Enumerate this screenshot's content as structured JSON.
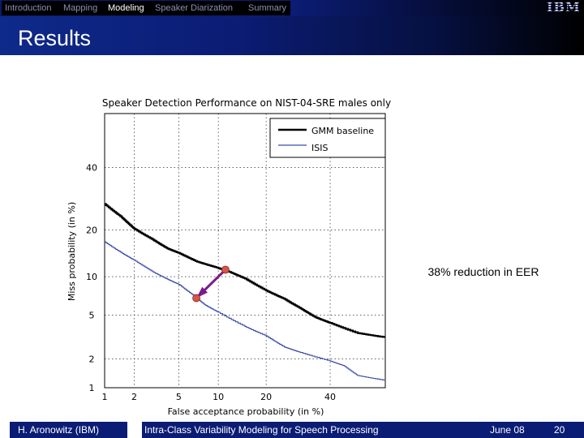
{
  "nav": {
    "items": [
      "Introduction",
      "Mapping",
      "Modeling",
      "Speaker Diarization",
      "Summary"
    ],
    "active": "Modeling",
    "logo_text": "IBM"
  },
  "slide_title": "Results",
  "chart_data": {
    "type": "line",
    "title": "Speaker Detection Performance on NIST-04-SRE males only",
    "xlabel": "False acceptance probability (in %)",
    "ylabel": "Miss probability (in %)",
    "x_ticks": [
      "1",
      "2",
      "5",
      "10",
      "20",
      "40"
    ],
    "y_ticks": [
      "40",
      "20",
      "10",
      "5",
      "2",
      "1"
    ],
    "xlim": [
      1,
      60
    ],
    "ylim": [
      1,
      60
    ],
    "scale": "probit (normal deviate)",
    "grid": true,
    "legend_position": "top-right",
    "series": [
      {
        "name": "GMM baseline",
        "color": "#000000",
        "points": [
          [
            1.0,
            27.5
          ],
          [
            1.5,
            23.5
          ],
          [
            2.0,
            20.3
          ],
          [
            3.0,
            17.5
          ],
          [
            4.0,
            15.5
          ],
          [
            5.0,
            14.5
          ],
          [
            7.0,
            12.7
          ],
          [
            10.0,
            11.5
          ],
          [
            12.0,
            10.8
          ],
          [
            15.0,
            9.7
          ],
          [
            20.0,
            7.9
          ],
          [
            25.0,
            6.8
          ],
          [
            30.0,
            5.7
          ],
          [
            35.0,
            4.8
          ],
          [
            40.0,
            4.3
          ],
          [
            50.0,
            3.5
          ],
          [
            60.0,
            3.2
          ]
        ]
      },
      {
        "name": "ISIS",
        "color": "#3a4aa8",
        "points": [
          [
            1.0,
            17.0
          ],
          [
            1.5,
            14.5
          ],
          [
            2.0,
            13.0
          ],
          [
            3.0,
            10.8
          ],
          [
            4.0,
            9.6
          ],
          [
            5.0,
            8.8
          ],
          [
            6.5,
            7.3
          ],
          [
            8.0,
            6.1
          ],
          [
            10.0,
            5.3
          ],
          [
            15.0,
            4.0
          ],
          [
            20.0,
            3.3
          ],
          [
            25.0,
            2.6
          ],
          [
            30.0,
            2.3
          ],
          [
            40.0,
            1.9
          ],
          [
            45.0,
            1.7
          ],
          [
            50.0,
            1.35
          ],
          [
            60.0,
            1.2
          ]
        ]
      }
    ],
    "annotation": {
      "label": "38% reduction in EER",
      "eer_baseline": 11.2,
      "eer_isis": 6.9
    }
  },
  "footer": {
    "author": "H. Aronowitz (IBM)",
    "talk_title": "Intra-Class Variability Modeling for Speech Processing",
    "date": "June 08",
    "page": "20"
  },
  "colors": {
    "nav_bg": "#0b1c74",
    "footer_bg": "#0b1c74",
    "isis": "#3a4aa8",
    "arrow": "#7a1a8a",
    "marker": "#d9544a"
  }
}
